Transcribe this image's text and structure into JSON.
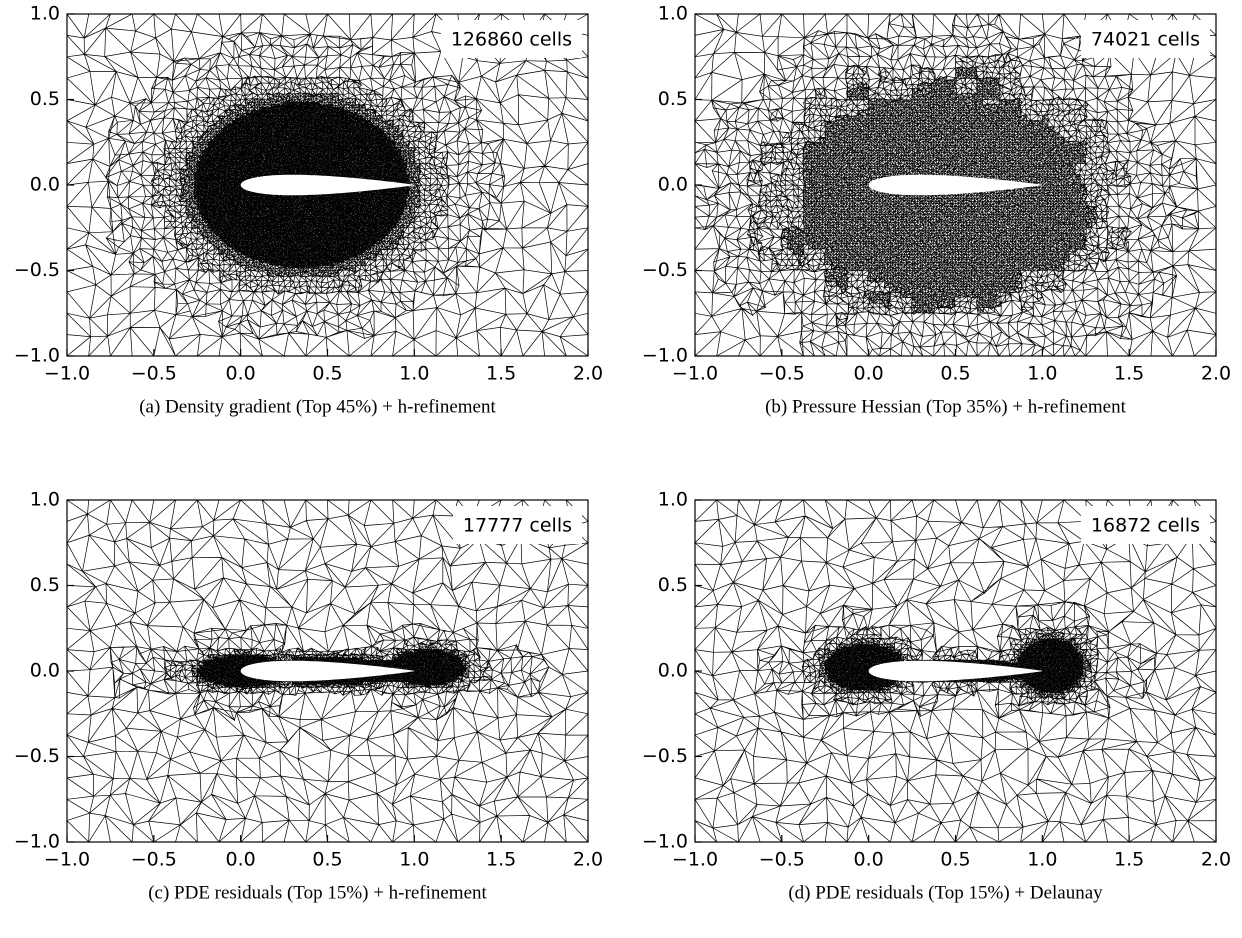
{
  "chart_data": [
    {
      "type": "mesh",
      "annotation": "126860 cells",
      "caption": "(a)  Density gradient (Top 45%) + h-refinement",
      "xlim": [
        -1,
        2
      ],
      "ylim": [
        -1,
        1
      ],
      "xticks": [
        {
          "value": -1,
          "label": "−1.0"
        },
        {
          "value": -0.5,
          "label": "−0.5"
        },
        {
          "value": 0,
          "label": "0.0"
        },
        0.5,
        {
          "value": 1,
          "label": "1.0"
        },
        1.5,
        {
          "value": 2,
          "label": "2.0"
        }
      ],
      "yticks": [
        {
          "value": -1,
          "label": "−1.0"
        },
        {
          "value": -0.5,
          "label": "−0.5"
        },
        {
          "value": 0,
          "label": "0.0"
        },
        0.5,
        {
          "value": 1,
          "label": "1.0"
        }
      ]
    },
    {
      "type": "mesh",
      "annotation": "74021 cells",
      "caption": "(b)  Pressure Hessian (Top 35%) + h-refinement",
      "xlim": [
        -1,
        2
      ],
      "ylim": [
        -1,
        1
      ],
      "xticks": [
        {
          "value": -1,
          "label": "−1.0"
        },
        {
          "value": -0.5,
          "label": "−0.5"
        },
        {
          "value": 0,
          "label": "0.0"
        },
        0.5,
        {
          "value": 1,
          "label": "1.0"
        },
        1.5,
        {
          "value": 2,
          "label": "2.0"
        }
      ],
      "yticks": [
        {
          "value": -1,
          "label": "−1.0"
        },
        {
          "value": -0.5,
          "label": "−0.5"
        },
        {
          "value": 0,
          "label": "0.0"
        },
        0.5,
        {
          "value": 1,
          "label": "1.0"
        }
      ]
    },
    {
      "type": "mesh",
      "annotation": "17777 cells",
      "caption": "(c)  PDE residuals (Top 15%) + h-refinement",
      "xlim": [
        -1,
        2
      ],
      "ylim": [
        -1,
        1
      ],
      "xticks": [
        {
          "value": -1,
          "label": "−1.0"
        },
        {
          "value": -0.5,
          "label": "−0.5"
        },
        {
          "value": 0,
          "label": "0.0"
        },
        0.5,
        {
          "value": 1,
          "label": "1.0"
        },
        1.5,
        {
          "value": 2,
          "label": "2.0"
        }
      ],
      "yticks": [
        {
          "value": -1,
          "label": "−1.0"
        },
        {
          "value": -0.5,
          "label": "−0.5"
        },
        {
          "value": 0,
          "label": "0.0"
        },
        0.5,
        {
          "value": 1,
          "label": "1.0"
        }
      ]
    },
    {
      "type": "mesh",
      "annotation": "16872 cells",
      "caption": "(d)  PDE residuals (Top 15%) + Delaunay",
      "xlim": [
        -1,
        2
      ],
      "ylim": [
        -1,
        1
      ],
      "xticks": [
        {
          "value": -1,
          "label": "−1.0"
        },
        {
          "value": -0.5,
          "label": "−0.5"
        },
        {
          "value": 0,
          "label": "0.0"
        },
        0.5,
        {
          "value": 1,
          "label": "1.0"
        },
        1.5,
        {
          "value": 2,
          "label": "2.0"
        }
      ],
      "yticks": [
        {
          "value": -1,
          "label": "−1.0"
        },
        {
          "value": -0.5,
          "label": "−0.5"
        },
        {
          "value": 0,
          "label": "0.0"
        },
        0.5,
        {
          "value": 1,
          "label": "1.0"
        }
      ]
    }
  ]
}
